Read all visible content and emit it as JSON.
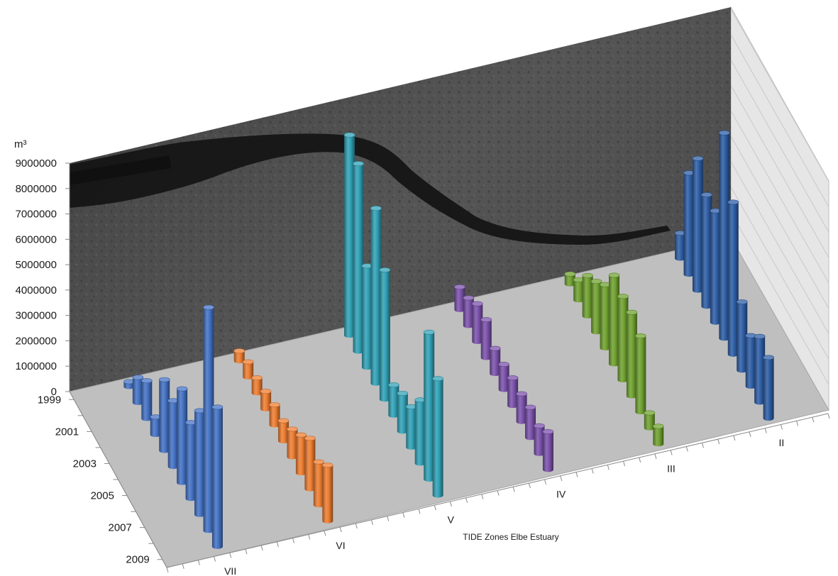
{
  "chart_data": {
    "type": "bar",
    "subtype": "3d-cylinder",
    "unit_label": "m³",
    "xlabel": "TIDE Zones Elbe Estuary",
    "ylim": [
      0,
      9000000
    ],
    "y_ticks": [
      "0",
      "1000000",
      "2000000",
      "3000000",
      "4000000",
      "5000000",
      "6000000",
      "7000000",
      "8000000",
      "9000000"
    ],
    "year_labels": [
      "1999",
      "2001",
      "2003",
      "2005",
      "2007",
      "2009"
    ],
    "years": [
      1999,
      2000,
      2001,
      2002,
      2003,
      2004,
      2005,
      2006,
      2007,
      2008,
      2009
    ],
    "background": "satellite image of the Elbe estuary on back wall",
    "series": [
      {
        "name": "VII",
        "color": "#4472c4",
        "values": [
          200000,
          1000000,
          1500000,
          700000,
          2800000,
          2600000,
          3700000,
          3000000,
          4100000,
          8800000,
          5500000
        ]
      },
      {
        "name": "VI",
        "color": "#ed7d31",
        "values": [
          400000,
          600000,
          600000,
          700000,
          800000,
          800000,
          1100000,
          1500000,
          2000000,
          1700000,
          2200000
        ]
      },
      {
        "name": "V",
        "color": "#31a1b6",
        "values": [
          7900000,
          7400000,
          4000000,
          6900000,
          5100000,
          1200000,
          1500000,
          1600000,
          2500000,
          5800000,
          4600000
        ]
      },
      {
        "name": "IV",
        "color": "#7b52ab",
        "values": [
          900000,
          1100000,
          1500000,
          1500000,
          1000000,
          1000000,
          1100000,
          1100000,
          1200000,
          1100000,
          1500000
        ]
      },
      {
        "name": "III",
        "color": "#70a130",
        "values": [
          400000,
          800000,
          1600000,
          2000000,
          2500000,
          3500000,
          3300000,
          3300000,
          3000000,
          600000,
          700000
        ]
      },
      {
        "name": "II",
        "color": "#2e5ea5",
        "values": [
          1000000,
          4000000,
          5200000,
          4400000,
          4400000,
          8100000,
          6000000,
          2700000,
          2000000,
          2600000,
          2400000
        ]
      }
    ]
  }
}
